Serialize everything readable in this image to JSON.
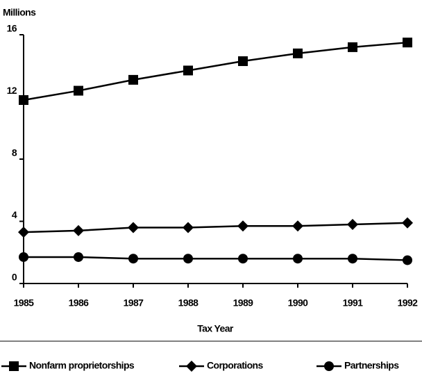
{
  "chart_data": {
    "type": "line",
    "y_axis_label": "Millions",
    "x_axis_label": "Tax Year",
    "x": [
      1985,
      1986,
      1987,
      1988,
      1989,
      1990,
      1991,
      1992
    ],
    "xlim": [
      1985,
      1992
    ],
    "xticks": [
      1985,
      1986,
      1987,
      1988,
      1989,
      1990,
      1991,
      1992
    ],
    "ylim": [
      0,
      16
    ],
    "yticks": [
      0,
      4,
      8,
      12,
      16
    ],
    "legend": "bottom",
    "series": [
      {
        "name": "Nonfarm proprietorships",
        "color": "#000000",
        "marker": "square",
        "values": [
          11.8,
          12.4,
          13.1,
          13.7,
          14.3,
          14.8,
          15.2,
          15.5
        ]
      },
      {
        "name": "Corporations",
        "color": "#000000",
        "marker": "diamond",
        "values": [
          3.3,
          3.4,
          3.6,
          3.6,
          3.7,
          3.7,
          3.8,
          3.9
        ]
      },
      {
        "name": "Partnerships",
        "color": "#000000",
        "marker": "circle",
        "values": [
          1.7,
          1.7,
          1.6,
          1.6,
          1.6,
          1.6,
          1.6,
          1.5
        ]
      }
    ]
  }
}
